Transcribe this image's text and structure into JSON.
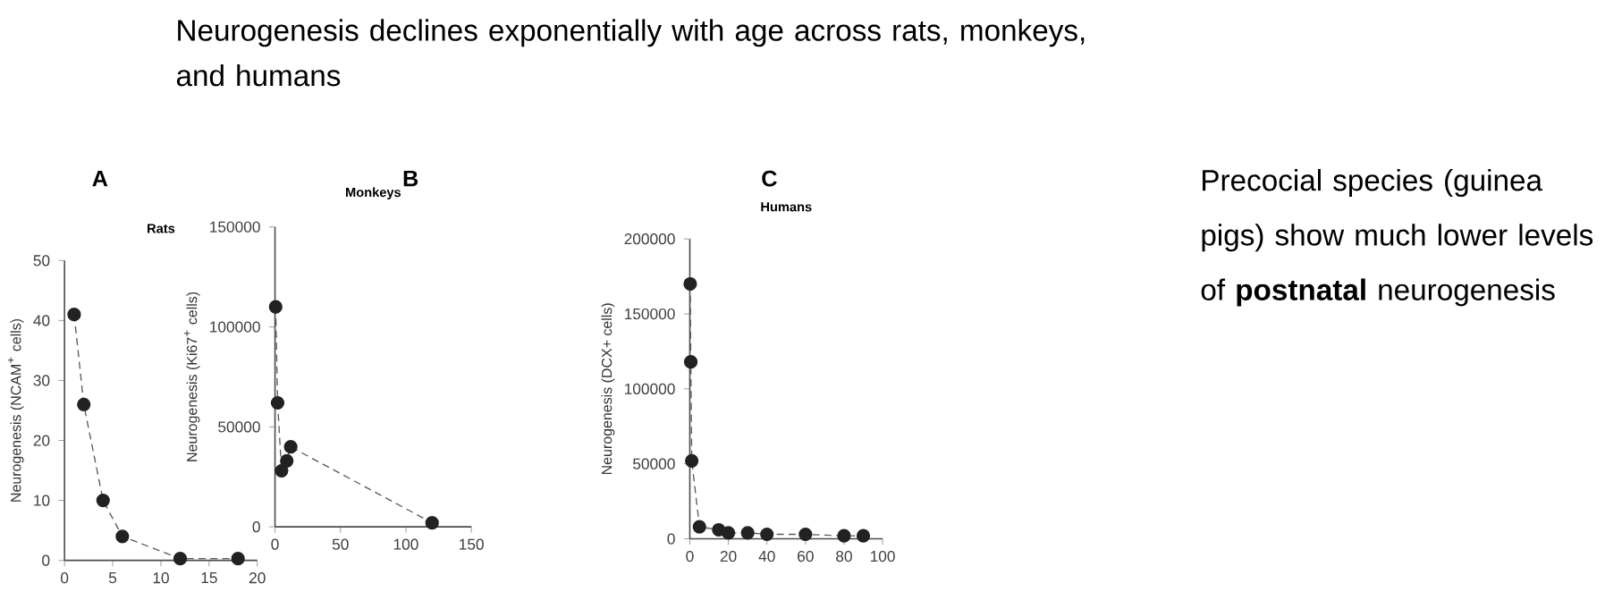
{
  "chart_data": [
    {
      "type": "other",
      "annotations": [
        "Neurogenesis declines exponentially with age across rats, monkeys, and humans",
        "Precocial species (guinea pigs) show much lower levels of **postnatal** neurogenesis"
      ]
    },
    {
      "type": "line",
      "title": "Rats",
      "ylabel": "Neurogenesis (NCAM$^{+}$ cells)",
      "annotations": [
        "A"
      ],
      "x": [
        1,
        2,
        4,
        6,
        12,
        18
      ],
      "values": [
        41,
        26,
        10,
        4,
        0.3,
        0.3
      ],
      "color": "#222222",
      "xlim": [
        0,
        20
      ],
      "ylim": [
        0,
        50
      ],
      "xticks": [
        0,
        5,
        10,
        15,
        20
      ],
      "yticks": [
        0,
        10,
        20,
        30,
        40,
        50
      ],
      "marker": "circle",
      "line_style": "dashed"
    },
    {
      "type": "line",
      "title": "Monkeys",
      "ylabel": "Neurogenesis (Ki67$^{+}$ cells)",
      "annotations": [
        "B"
      ],
      "x": [
        0.5,
        2,
        5,
        9,
        12,
        120
      ],
      "values": [
        110000,
        62000,
        28000,
        33000,
        40000,
        2000
      ],
      "color": "#222222",
      "xlim": [
        0,
        150
      ],
      "ylim": [
        0,
        150000
      ],
      "xticks": [
        0,
        50,
        100,
        150
      ],
      "yticks": [
        0,
        50000,
        100000,
        150000
      ],
      "marker": "circle",
      "line_style": "dashed"
    },
    {
      "type": "line",
      "title": "Humans",
      "ylabel": "Neurogenesis (DCX+ cells)",
      "annotations": [
        "C"
      ],
      "x": [
        0.2,
        0.5,
        1,
        5,
        15,
        20,
        30,
        40,
        60,
        80,
        90
      ],
      "values": [
        170000,
        118000,
        52000,
        8000,
        6000,
        4000,
        4000,
        3000,
        3000,
        2000,
        2000
      ],
      "color": "#222222",
      "xlim": [
        0,
        100
      ],
      "ylim": [
        0,
        200000
      ],
      "xticks": [
        0,
        20,
        40,
        60,
        80,
        100
      ],
      "yticks": [
        0,
        50000,
        100000,
        150000,
        200000
      ],
      "marker": "circle",
      "line_style": "dashed"
    }
  ]
}
